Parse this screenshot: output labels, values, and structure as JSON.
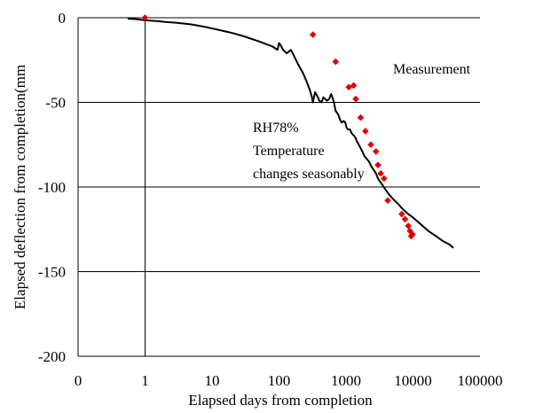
{
  "chart_data": {
    "type": "scatter",
    "xscale": "log",
    "xlim": [
      0.1,
      100000
    ],
    "ylim": [
      -200,
      0
    ],
    "xticks": [
      0.1,
      1,
      10,
      100,
      1000,
      10000,
      100000
    ],
    "xtick_labels": [
      "0",
      "1",
      "10",
      "100",
      "1000",
      "10000",
      "100000"
    ],
    "yticks": [
      0,
      -50,
      -100,
      -150,
      -200
    ],
    "ytick_labels": [
      "0",
      "-50",
      "-100",
      "-150",
      "-200"
    ],
    "grid": "horizontal",
    "vline_x": 1,
    "xlabel": "Elapsed days from completion",
    "ylabel": "Elapsed deflection from completion(mm",
    "annotations": {
      "measurement": "Measurement",
      "rh": "RH78%",
      "temp1": "Temperature",
      "temp2": "changes seasonably"
    },
    "series": [
      {
        "name": "",
        "kind": "line",
        "color": "#000000",
        "points": [
          [
            0.55,
            -0.5
          ],
          [
            0.7,
            -0.8
          ],
          [
            1,
            -1.5
          ],
          [
            1.5,
            -2
          ],
          [
            2,
            -2.5
          ],
          [
            3,
            -3
          ],
          [
            5,
            -4
          ],
          [
            8,
            -5.5
          ],
          [
            12,
            -7
          ],
          [
            20,
            -9
          ],
          [
            30,
            -11
          ],
          [
            50,
            -14
          ],
          [
            80,
            -17
          ],
          [
            95,
            -19
          ],
          [
            100,
            -15
          ],
          [
            105,
            -16
          ],
          [
            115,
            -19
          ],
          [
            130,
            -21
          ],
          [
            150,
            -19
          ],
          [
            160,
            -21
          ],
          [
            190,
            -27
          ],
          [
            230,
            -33
          ],
          [
            260,
            -38
          ],
          [
            290,
            -43
          ],
          [
            310,
            -47
          ],
          [
            320,
            -50
          ],
          [
            345,
            -44
          ],
          [
            370,
            -46
          ],
          [
            400,
            -49
          ],
          [
            430,
            -50
          ],
          [
            460,
            -47
          ],
          [
            520,
            -49
          ],
          [
            560,
            -48
          ],
          [
            600,
            -45
          ],
          [
            650,
            -49
          ],
          [
            700,
            -55
          ],
          [
            760,
            -57
          ],
          [
            810,
            -60
          ],
          [
            860,
            -62
          ],
          [
            920,
            -61
          ],
          [
            980,
            -62
          ],
          [
            1020,
            -65
          ],
          [
            1080,
            -66
          ],
          [
            1150,
            -66
          ],
          [
            1200,
            -68
          ],
          [
            1260,
            -69
          ],
          [
            1330,
            -70
          ],
          [
            1390,
            -71
          ],
          [
            1450,
            -73
          ],
          [
            1500,
            -74
          ],
          [
            1600,
            -76
          ],
          [
            1700,
            -78
          ],
          [
            1800,
            -80
          ],
          [
            1900,
            -82
          ],
          [
            2000,
            -83
          ],
          [
            2200,
            -85
          ],
          [
            2400,
            -88
          ],
          [
            2600,
            -90
          ],
          [
            2800,
            -92
          ],
          [
            3000,
            -95
          ],
          [
            3400,
            -98
          ],
          [
            3800,
            -101
          ],
          [
            4300,
            -104
          ],
          [
            5000,
            -107
          ],
          [
            6000,
            -110
          ],
          [
            7000,
            -113
          ],
          [
            8500,
            -116
          ],
          [
            10000,
            -118
          ],
          [
            13000,
            -122
          ],
          [
            17000,
            -126
          ],
          [
            22000,
            -129
          ],
          [
            28000,
            -132
          ],
          [
            35000,
            -134
          ],
          [
            40000,
            -136
          ]
        ]
      },
      {
        "name": "Measurement",
        "kind": "scatter",
        "color": "#e00000",
        "points": [
          [
            1,
            0
          ],
          [
            320,
            -10
          ],
          [
            700,
            -26
          ],
          [
            1100,
            -41
          ],
          [
            1300,
            -40
          ],
          [
            1400,
            -48
          ],
          [
            1650,
            -59
          ],
          [
            1950,
            -67
          ],
          [
            2350,
            -75
          ],
          [
            2800,
            -79
          ],
          [
            3000,
            -87
          ],
          [
            3300,
            -92
          ],
          [
            3700,
            -95
          ],
          [
            4200,
            -108
          ],
          [
            6800,
            -116
          ],
          [
            7600,
            -119
          ],
          [
            8500,
            -123
          ],
          [
            9000,
            -126
          ],
          [
            9400,
            -129
          ],
          [
            9800,
            -128
          ]
        ]
      }
    ]
  }
}
